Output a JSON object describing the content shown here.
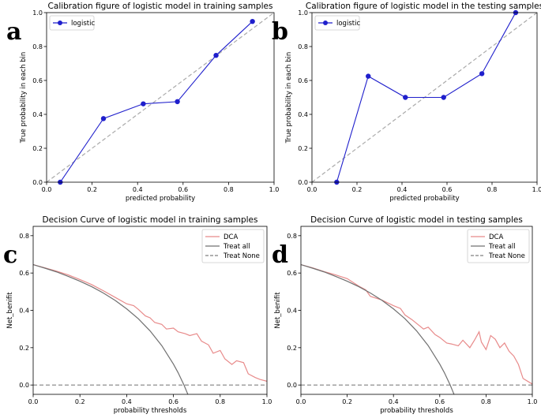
{
  "chart_data": [
    {
      "type": "line",
      "panel_label": "a",
      "title": "Calibration figure of logistic model in training samples",
      "xlabel": "predicted probability",
      "ylabel": "True probability in each bin",
      "xlim": [
        0,
        1
      ],
      "ylim": [
        0,
        1
      ],
      "xticks": [
        "0.0",
        "0.2",
        "0.4",
        "0.6",
        "0.8",
        "1.0"
      ],
      "yticks": [
        "0.0",
        "0.2",
        "0.4",
        "0.6",
        "0.8",
        "1.0"
      ],
      "grid": false,
      "legend_position": "top-left",
      "reference_line": {
        "x": [
          0,
          1
        ],
        "y": [
          0,
          1
        ],
        "color": "#aaaaaa",
        "style": "dashed"
      },
      "series": [
        {
          "name": "logistic",
          "color": "#1f1fcc",
          "marker": "circle",
          "x": [
            0.06,
            0.25,
            0.425,
            0.575,
            0.745,
            0.905
          ],
          "y": [
            0.0,
            0.375,
            0.462,
            0.475,
            0.748,
            0.948
          ]
        }
      ]
    },
    {
      "type": "line",
      "panel_label": "b",
      "title": "Calibration figure of logistic model in the testing samples",
      "xlabel": "predicted probability",
      "ylabel": "True probability in each bin",
      "xlim": [
        0,
        1
      ],
      "ylim": [
        0,
        1
      ],
      "xticks": [
        "0.0",
        "0.2",
        "0.4",
        "0.6",
        "0.8",
        "1.0"
      ],
      "yticks": [
        "0.0",
        "0.2",
        "0.4",
        "0.6",
        "0.8",
        "1.0"
      ],
      "grid": false,
      "legend_position": "top-left",
      "reference_line": {
        "x": [
          0,
          1
        ],
        "y": [
          0,
          1
        ],
        "color": "#aaaaaa",
        "style": "dashed"
      },
      "series": [
        {
          "name": "logistic",
          "color": "#1f1fcc",
          "marker": "circle",
          "x": [
            0.11,
            0.25,
            0.415,
            0.585,
            0.755,
            0.905
          ],
          "y": [
            0.0,
            0.625,
            0.5,
            0.5,
            0.64,
            1.0
          ]
        }
      ]
    },
    {
      "type": "line",
      "panel_label": "c",
      "title": "Decision Curve of logistic model in training samples",
      "xlabel": "probability thresholds",
      "ylabel": "Net_benifit",
      "xlim": [
        0,
        1
      ],
      "ylim": [
        -0.05,
        0.85
      ],
      "xticks": [
        "0.0",
        "0.2",
        "0.4",
        "0.6",
        "0.8",
        "1.0"
      ],
      "yticks": [
        "0.0",
        "0.2",
        "0.4",
        "0.6",
        "0.8"
      ],
      "ytick_values": [
        0,
        0.2,
        0.4,
        0.6,
        0.8
      ],
      "grid": false,
      "legend_position": "top-right",
      "series": [
        {
          "name": "DCA",
          "color": "#e88a8a",
          "style": "solid",
          "x": [
            0,
            0.05,
            0.1,
            0.15,
            0.2,
            0.25,
            0.3,
            0.35,
            0.4,
            0.43,
            0.45,
            0.48,
            0.5,
            0.52,
            0.55,
            0.57,
            0.6,
            0.62,
            0.65,
            0.67,
            0.7,
            0.72,
            0.75,
            0.77,
            0.8,
            0.82,
            0.85,
            0.87,
            0.9,
            0.92,
            0.95,
            0.97,
            1.0
          ],
          "y": [
            0.645,
            0.628,
            0.61,
            0.59,
            0.565,
            0.538,
            0.505,
            0.47,
            0.435,
            0.425,
            0.405,
            0.37,
            0.36,
            0.335,
            0.325,
            0.3,
            0.305,
            0.285,
            0.275,
            0.265,
            0.275,
            0.235,
            0.215,
            0.17,
            0.185,
            0.14,
            0.11,
            0.13,
            0.12,
            0.06,
            0.04,
            0.03,
            0.02
          ]
        },
        {
          "name": "Treat all",
          "color": "#707070",
          "style": "solid",
          "formula": "0.645 - 0.355*t/(1-t)",
          "x": [
            0,
            0.05,
            0.1,
            0.15,
            0.2,
            0.25,
            0.3,
            0.35,
            0.4,
            0.45,
            0.5,
            0.55,
            0.6,
            0.62,
            0.645,
            0.66,
            0.676
          ],
          "y": [
            0.645,
            0.626,
            0.606,
            0.582,
            0.556,
            0.527,
            0.493,
            0.454,
            0.408,
            0.355,
            0.29,
            0.211,
            0.112,
            0.066,
            0.0,
            -0.045,
            -0.095
          ]
        },
        {
          "name": "Treat None",
          "color": "#808080",
          "style": "dashed",
          "x": [
            0,
            1
          ],
          "y": [
            0,
            0
          ]
        }
      ]
    },
    {
      "type": "line",
      "panel_label": "d",
      "title": "Decision Curve of logistic model in testing samples",
      "xlabel": "probability thresholds",
      "ylabel": "Net_benifit",
      "xlim": [
        0,
        1
      ],
      "ylim": [
        -0.05,
        0.85
      ],
      "xticks": [
        "0.0",
        "0.2",
        "0.4",
        "0.6",
        "0.8",
        "1.0"
      ],
      "yticks": [
        "0.0",
        "0.2",
        "0.4",
        "0.6",
        "0.8"
      ],
      "ytick_values": [
        0,
        0.2,
        0.4,
        0.6,
        0.8
      ],
      "grid": false,
      "legend_position": "top-right",
      "series": [
        {
          "name": "DCA",
          "color": "#e88a8a",
          "style": "solid",
          "x": [
            0,
            0.05,
            0.1,
            0.15,
            0.2,
            0.25,
            0.28,
            0.3,
            0.35,
            0.4,
            0.43,
            0.45,
            0.48,
            0.5,
            0.53,
            0.55,
            0.58,
            0.6,
            0.63,
            0.65,
            0.68,
            0.7,
            0.73,
            0.75,
            0.77,
            0.78,
            0.8,
            0.82,
            0.84,
            0.86,
            0.88,
            0.9,
            0.92,
            0.94,
            0.96,
            0.98,
            1.0
          ],
          "y": [
            0.645,
            0.628,
            0.608,
            0.59,
            0.57,
            0.53,
            0.51,
            0.475,
            0.455,
            0.425,
            0.41,
            0.375,
            0.35,
            0.33,
            0.3,
            0.31,
            0.27,
            0.255,
            0.225,
            0.22,
            0.21,
            0.24,
            0.2,
            0.24,
            0.285,
            0.23,
            0.19,
            0.265,
            0.245,
            0.2,
            0.225,
            0.18,
            0.155,
            0.11,
            0.035,
            0.02,
            0.005
          ]
        },
        {
          "name": "Treat all",
          "color": "#707070",
          "style": "solid",
          "formula": "0.645 - 0.355*t/(1-t)",
          "x": [
            0,
            0.05,
            0.1,
            0.15,
            0.2,
            0.25,
            0.3,
            0.35,
            0.4,
            0.45,
            0.5,
            0.55,
            0.6,
            0.62,
            0.645,
            0.66,
            0.676
          ],
          "y": [
            0.645,
            0.626,
            0.606,
            0.582,
            0.556,
            0.527,
            0.493,
            0.454,
            0.408,
            0.355,
            0.29,
            0.211,
            0.112,
            0.066,
            0.0,
            -0.045,
            -0.095
          ]
        },
        {
          "name": "Treat None",
          "color": "#808080",
          "style": "dashed",
          "x": [
            0,
            1
          ],
          "y": [
            0,
            0
          ]
        }
      ]
    }
  ]
}
